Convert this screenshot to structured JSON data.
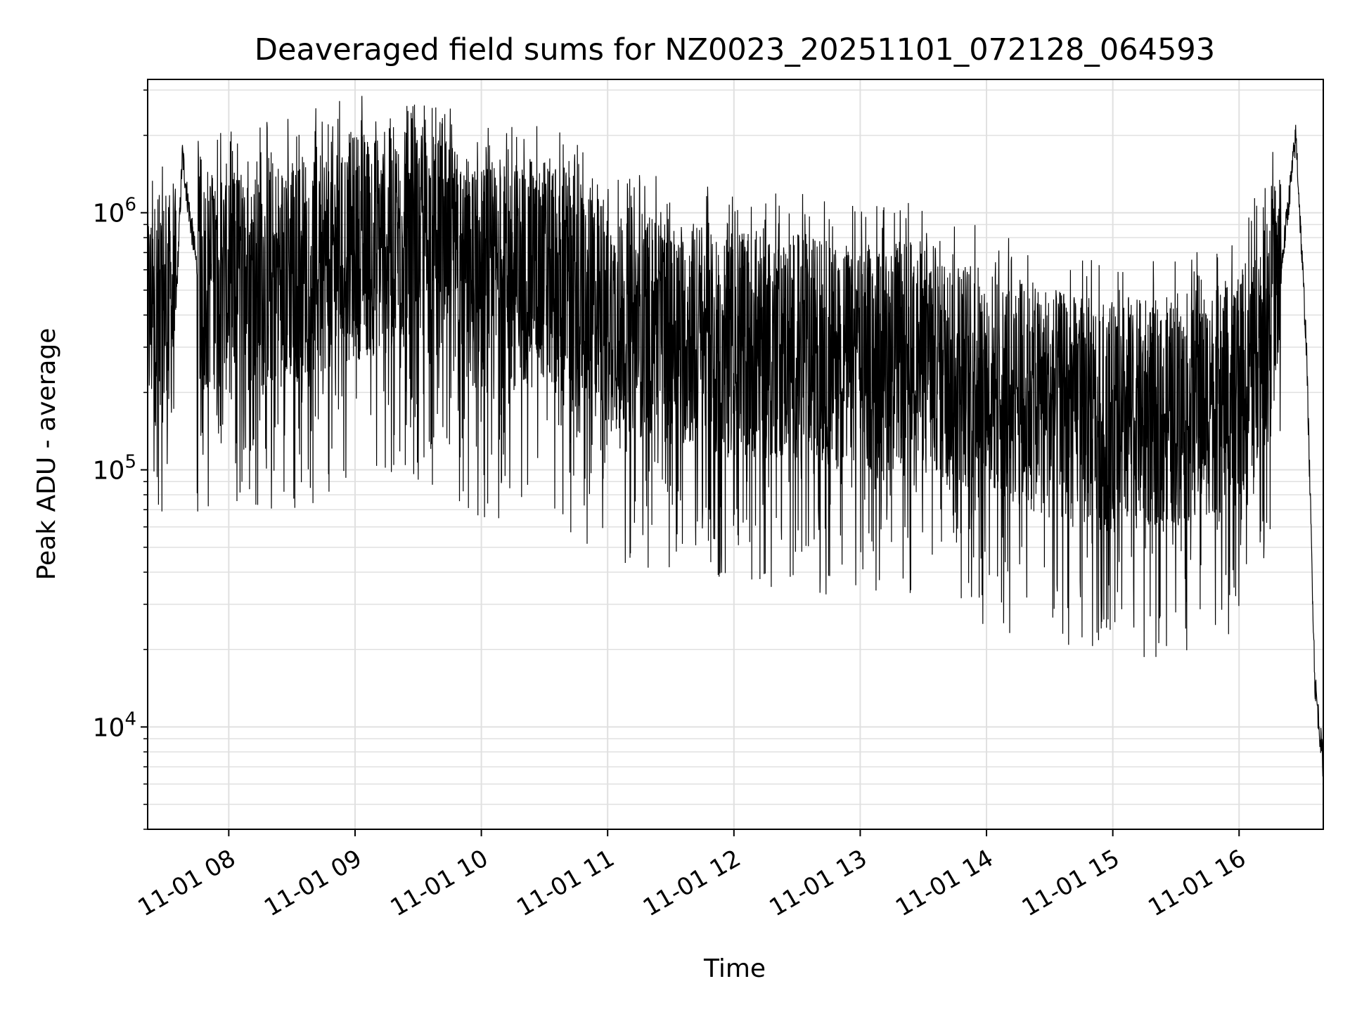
{
  "chart_data": {
    "type": "line",
    "title": "Deaveraged field sums for NZ0023_20251101_072128_064593",
    "xlabel": "Time",
    "ylabel": "Peak ADU - average",
    "yscale": "log",
    "ylim": [
      4000,
      3300000
    ],
    "xlim": [
      "2025-11-01 07:21:28",
      "2025-11-01 16:40:00"
    ],
    "grid": true,
    "legend": "none",
    "line_color": "#000000",
    "grid_color": "#e0e0e0",
    "x_ticks": [
      {
        "value": "2025-11-01 08:00",
        "label": "11-01 08"
      },
      {
        "value": "2025-11-01 09:00",
        "label": "11-01 09"
      },
      {
        "value": "2025-11-01 10:00",
        "label": "11-01 10"
      },
      {
        "value": "2025-11-01 11:00",
        "label": "11-01 11"
      },
      {
        "value": "2025-11-01 12:00",
        "label": "11-01 12"
      },
      {
        "value": "2025-11-01 13:00",
        "label": "11-01 13"
      },
      {
        "value": "2025-11-01 14:00",
        "label": "11-01 14"
      },
      {
        "value": "2025-11-01 15:00",
        "label": "11-01 15"
      },
      {
        "value": "2025-11-01 16:00",
        "label": "11-01 16"
      }
    ],
    "y_ticks": [
      {
        "value": 10000,
        "base": "10",
        "exp": "4"
      },
      {
        "value": 100000,
        "base": "10",
        "exp": "5"
      },
      {
        "value": 1000000,
        "base": "10",
        "exp": "6"
      }
    ],
    "series": [
      {
        "x": [
          "2025-11-01 07:21:28",
          "2025-11-01 07:35",
          "2025-11-01 07:38",
          "2025-11-01 07:40",
          "2025-11-01 07:45",
          "2025-11-01 08:00",
          "2025-11-01 08:30",
          "2025-11-01 09:00",
          "2025-11-01 09:30",
          "2025-11-01 10:00",
          "2025-11-01 10:30",
          "2025-11-01 11:00",
          "2025-11-01 11:30",
          "2025-11-01 12:00",
          "2025-11-01 12:30",
          "2025-11-01 13:00",
          "2025-11-01 13:30",
          "2025-11-01 14:00",
          "2025-11-01 14:30",
          "2025-11-01 15:00",
          "2025-11-01 15:30",
          "2025-11-01 16:00",
          "2025-11-01 16:20",
          "2025-11-01 16:27",
          "2025-11-01 16:32",
          "2025-11-01 16:36",
          "2025-11-01 16:40"
        ],
        "y": [
          400000,
          450000,
          1700000,
          1200000,
          600000,
          550000,
          600000,
          750000,
          800000,
          550000,
          600000,
          400000,
          350000,
          320000,
          300000,
          270000,
          280000,
          220000,
          180000,
          160000,
          170000,
          200000,
          600000,
          2000000,
          300000,
          15000,
          7000
        ]
      }
    ]
  }
}
